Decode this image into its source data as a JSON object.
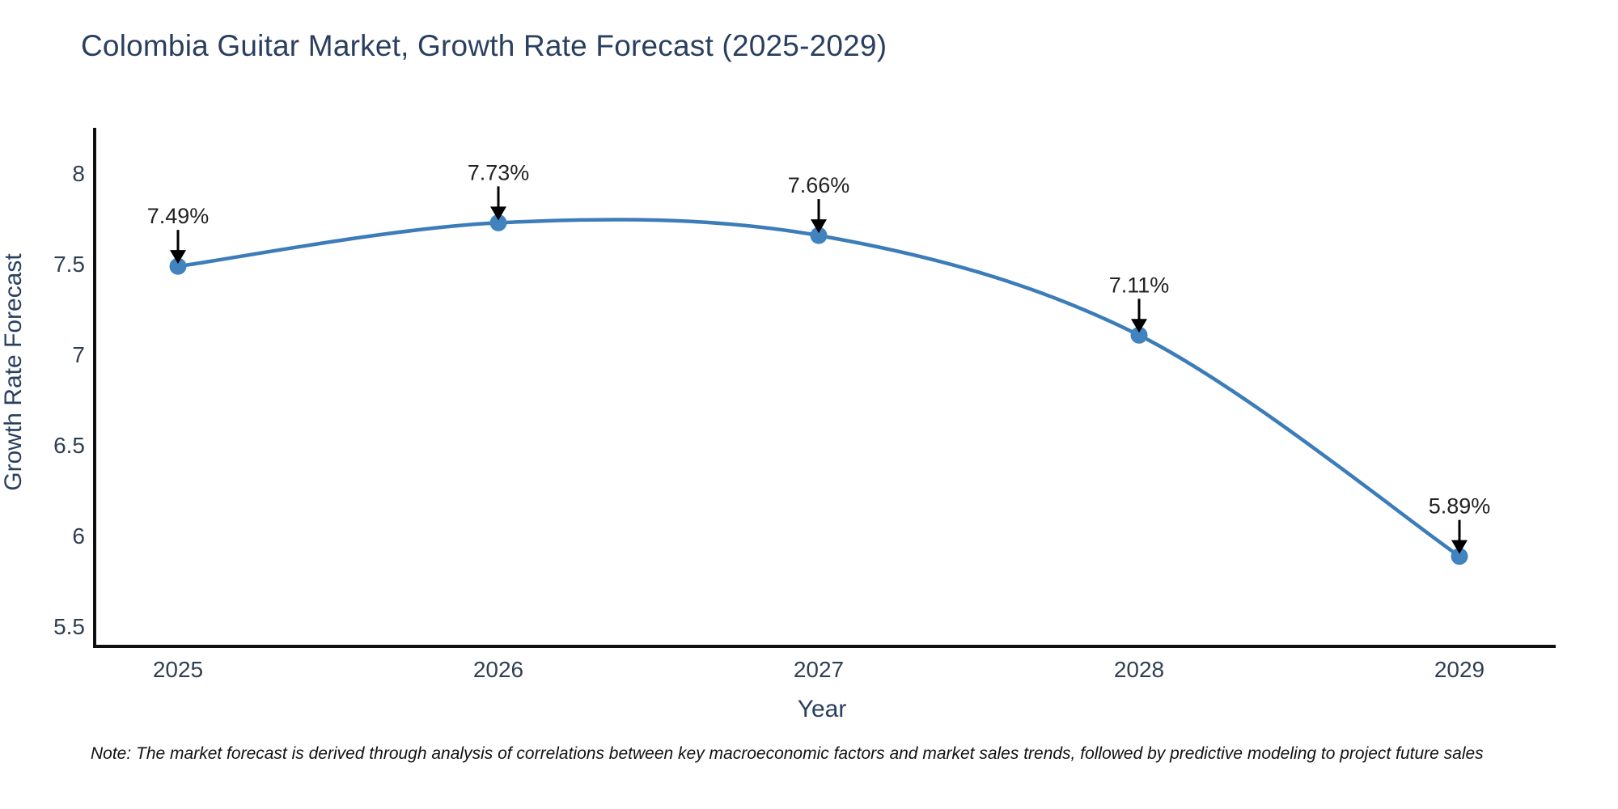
{
  "title": "Colombia Guitar Market, Growth Rate Forecast (2025-2029)",
  "note": "Note: The market forecast is derived through analysis of correlations between key macroeconomic factors and market sales trends, followed by predictive modeling to project future sales",
  "axes": {
    "x_title": "Year",
    "y_title": "Growth Rate Forecast"
  },
  "colors": {
    "background": "#ffffff",
    "title_text": "#2a3f5f",
    "axis_title_text": "#2a3f5f",
    "tick_text": "#2f3f52",
    "axis_line": "#101010",
    "line": "#3c7cb8",
    "marker": "#4183bf",
    "annotation_text": "#222222",
    "arrow": "#000000",
    "note_text": "#111111"
  },
  "chart_data": {
    "type": "line",
    "title": "Colombia Guitar Market, Growth Rate Forecast (2025-2029)",
    "xlabel": "Year",
    "ylabel": "Growth Rate Forecast",
    "x": [
      2025,
      2026,
      2027,
      2028,
      2029
    ],
    "series": [
      {
        "name": "Growth Rate Forecast",
        "values": [
          7.49,
          7.73,
          7.66,
          7.11,
          5.89
        ]
      }
    ],
    "point_labels": [
      "7.49%",
      "7.73%",
      "7.66%",
      "7.11%",
      "5.89%"
    ],
    "yticks": [
      5.5,
      6,
      6.5,
      7,
      7.5,
      8
    ],
    "ylim": [
      5.393,
      8.254
    ],
    "line_shape": "spline",
    "markers": true,
    "grid": false,
    "legend_position": "none",
    "annotation_style": "value label with downward black arrow above each data point"
  }
}
